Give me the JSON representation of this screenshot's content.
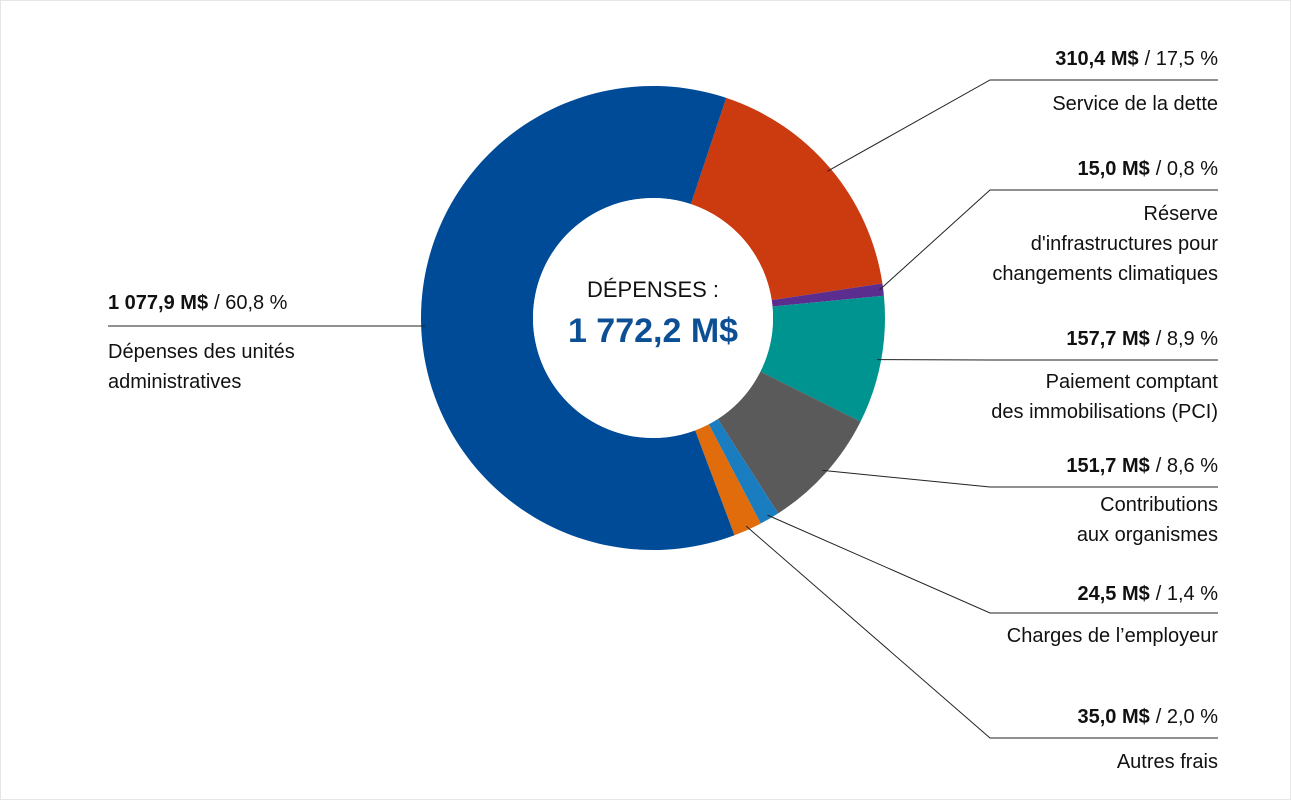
{
  "chart_data": {
    "type": "donut",
    "center_label": "DÉPENSES :",
    "total": 1772.2,
    "total_label": "1 772,2 M$",
    "categories": [
      "Service de la dette",
      "Réserve\nd'infrastructures pour\nchangements climatiques",
      "Paiement comptant\ndes immobilisations (PCI)",
      "Contributions\naux organismes",
      "Charges de l’employeur",
      "Autres frais",
      "Dépenses des unités\nadministratives"
    ],
    "values": [
      310.4,
      15.0,
      157.7,
      151.7,
      24.5,
      35.0,
      1077.9
    ],
    "value_labels": [
      "310,4 M$",
      "15,0 M$",
      "157,7 M$",
      "151,7 M$",
      "24,5 M$",
      "35,0 M$",
      "1 077,9 M$"
    ],
    "percents": [
      17.5,
      0.8,
      8.9,
      8.6,
      1.4,
      2.0,
      60.8
    ],
    "percent_labels": [
      "/ 17,5 %",
      "/ 0,8 %",
      "/ 8,9 %",
      "/ 8,6 %",
      "/ 1,4 %",
      "/ 2,0 %",
      "/ 60,8 %"
    ],
    "colors": [
      "#cc3a0f",
      "#5b2d8e",
      "#009490",
      "#5a5a5a",
      "#1a7dc0",
      "#e06c0c",
      "#004b98"
    ]
  }
}
